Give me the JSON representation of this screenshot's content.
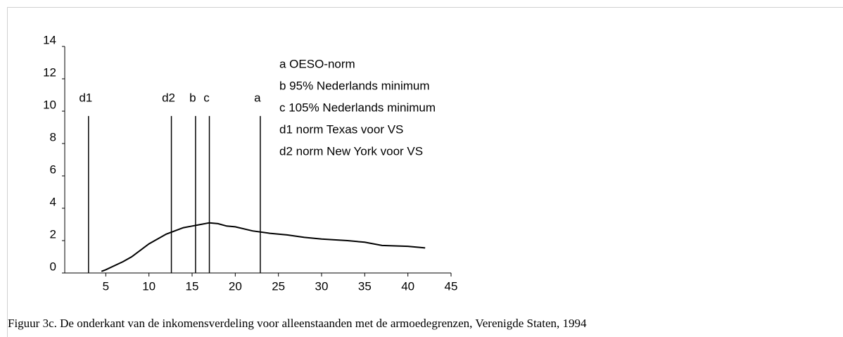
{
  "chart_data": {
    "type": "line",
    "x": [
      4.5,
      5,
      7,
      8,
      10,
      12,
      14,
      15,
      16,
      17,
      18,
      19,
      20,
      22,
      24,
      26,
      28,
      30,
      33,
      35,
      37,
      40,
      42
    ],
    "values": [
      0.1,
      0.2,
      0.7,
      1,
      1.8,
      2.4,
      2.8,
      2.9,
      3,
      3.1,
      3.05,
      2.9,
      2.85,
      2.6,
      2.45,
      2.35,
      2.2,
      2.1,
      2,
      1.9,
      1.7,
      1.65,
      1.55
    ],
    "color": "#000000",
    "xlim": [
      0,
      45
    ],
    "xticks": [
      5,
      10,
      15,
      20,
      25,
      30,
      35,
      40,
      45
    ],
    "ylim": [
      0,
      14
    ],
    "yticks": [
      0,
      2,
      4,
      6,
      8,
      10,
      12,
      14
    ],
    "markers": [
      {
        "label": "d1",
        "x": 3,
        "height": 9.7
      },
      {
        "label": "d2",
        "x": 12.6,
        "height": 9.7
      },
      {
        "label": "b",
        "x": 15.4,
        "height": 9.7
      },
      {
        "label": "c",
        "x": 17,
        "height": 9.7
      },
      {
        "label": "a",
        "x": 22.9,
        "height": 9.7
      }
    ],
    "legend": [
      "a  OESO-norm",
      "b  95% Nederlands minimum",
      "c  105% Nederlands minimum",
      "d1 norm Texas voor VS",
      "d2 norm New York voor VS"
    ]
  },
  "caption": "Figuur 3c. De onderkant van de inkomensverdeling voor alleenstaanden met de armoedegrenzen, Verenigde Staten, 1994"
}
